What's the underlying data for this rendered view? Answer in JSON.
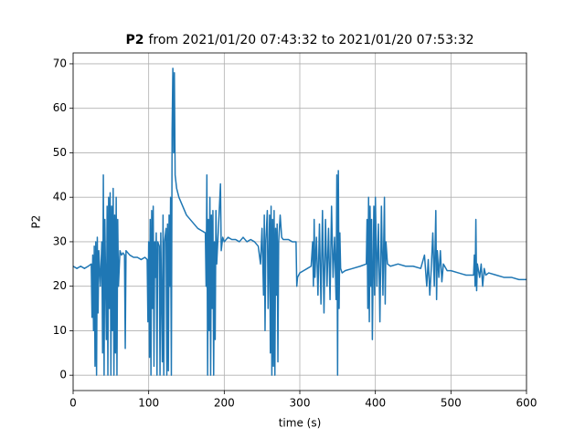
{
  "chart_data": {
    "type": "line",
    "title_variable": "P2",
    "title_range": "from 2021/01/20 07:43:32 to 2021/01/20 07:53:32",
    "xlabel": "time (s)",
    "ylabel": "P2",
    "color": "#1f77b4",
    "grid": true,
    "xlim": [
      0,
      600
    ],
    "xticks": [
      0,
      100,
      200,
      300,
      400,
      500,
      600
    ],
    "ylim": [
      -3.45,
      72.45
    ],
    "yticks": [
      0,
      10,
      20,
      30,
      40,
      50,
      60,
      70
    ],
    "x": [
      0,
      5,
      10,
      15,
      20,
      24,
      25,
      26,
      27,
      28,
      29,
      30,
      31,
      32,
      33,
      34,
      36,
      38,
      39,
      40,
      41,
      42,
      44,
      45,
      46,
      47,
      48,
      49,
      50,
      51,
      52,
      53,
      54,
      55,
      56,
      57,
      58,
      59,
      60,
      62,
      64,
      66,
      68,
      69,
      70,
      75,
      80,
      85,
      90,
      95,
      98,
      99,
      100,
      101,
      102,
      103,
      104,
      105,
      106,
      107,
      108,
      109,
      110,
      111,
      112,
      114,
      115,
      116,
      118,
      119,
      120,
      121,
      123,
      124,
      125,
      126,
      127,
      128,
      129,
      130,
      131,
      132,
      133,
      134,
      135,
      137,
      140,
      145,
      150,
      155,
      160,
      165,
      170,
      175,
      176,
      177,
      178,
      179,
      180,
      181,
      182,
      183,
      184,
      185,
      186,
      187,
      188,
      189,
      190,
      192,
      195,
      196,
      198,
      200,
      205,
      210,
      215,
      220,
      225,
      230,
      235,
      240,
      245,
      248,
      250,
      252,
      253,
      254,
      255,
      257,
      258,
      260,
      261,
      262,
      263,
      264,
      265,
      266,
      267,
      268,
      269,
      270,
      271,
      272,
      274,
      276,
      278,
      280,
      285,
      290,
      295,
      296,
      297,
      300,
      305,
      310,
      315,
      317,
      318,
      319,
      320,
      322,
      324,
      326,
      328,
      330,
      332,
      334,
      336,
      338,
      340,
      342,
      344,
      346,
      348,
      349,
      350,
      351,
      352,
      353,
      354,
      356,
      360,
      370,
      380,
      388,
      389,
      390,
      391,
      392,
      393,
      394,
      395,
      396,
      398,
      399,
      400,
      402,
      404,
      406,
      408,
      410,
      412,
      413,
      414,
      416,
      420,
      430,
      440,
      450,
      460,
      465,
      468,
      470,
      472,
      474,
      476,
      478,
      480,
      481,
      482,
      484,
      486,
      488,
      490,
      495,
      500,
      510,
      520,
      530,
      531,
      532,
      533,
      534,
      535,
      538,
      540,
      542,
      544,
      546,
      550,
      560,
      570,
      580,
      590,
      600
    ],
    "values": [
      24.5,
      24,
      24.5,
      24,
      24.5,
      25,
      13,
      27,
      10,
      29,
      2,
      30,
      0,
      31,
      14,
      28,
      20,
      30,
      5,
      45,
      0,
      35,
      8,
      38,
      0,
      40,
      15,
      41,
      0,
      38,
      10,
      42,
      0,
      36,
      5,
      40,
      0,
      35,
      20,
      28,
      27,
      27.5,
      27,
      6,
      28,
      27,
      26.5,
      26.5,
      26,
      26.5,
      26,
      12,
      30,
      4,
      35,
      0,
      37,
      15,
      38,
      2,
      30,
      22,
      32,
      0,
      30,
      29,
      0,
      32,
      3,
      36,
      0,
      30,
      33,
      0,
      34,
      1,
      36,
      20,
      40,
      0,
      55,
      69,
      50,
      68,
      45,
      42,
      40,
      38,
      36,
      35,
      34,
      33,
      32.5,
      32,
      20,
      45,
      0,
      35,
      10,
      40,
      0,
      36,
      15,
      37,
      0,
      30,
      8,
      37,
      25,
      32,
      43,
      28,
      31,
      30,
      31,
      30.5,
      30.5,
      30,
      31,
      30,
      30.5,
      30,
      29,
      25,
      33,
      18,
      36,
      10,
      30,
      37,
      15,
      36,
      5,
      38,
      0,
      35,
      2,
      37,
      0,
      33,
      18,
      34,
      3,
      30,
      36,
      31,
      30.5,
      30.5,
      30.5,
      30,
      30,
      20,
      22,
      23,
      23.5,
      24,
      24.5,
      30,
      20,
      35,
      22,
      31,
      18,
      34,
      16,
      37,
      14,
      35,
      20,
      33,
      17,
      38,
      22,
      31,
      17,
      45,
      0,
      46,
      15,
      32,
      24,
      23,
      23.5,
      24,
      24.5,
      25,
      35,
      15,
      40,
      12,
      38,
      20,
      35,
      8,
      38,
      18,
      40,
      20,
      34,
      12,
      38,
      18,
      40,
      16,
      30,
      25,
      24.5,
      25,
      24.5,
      24.5,
      24,
      27,
      20,
      26,
      18,
      24,
      32,
      20,
      37,
      17,
      28,
      22,
      28,
      21,
      25,
      23.5,
      23.5,
      23,
      22.5,
      22.5,
      27,
      20,
      35,
      19,
      25,
      22,
      25,
      20,
      24,
      22.5,
      23,
      22.5,
      22,
      22,
      21.5,
      21.5
    ]
  }
}
